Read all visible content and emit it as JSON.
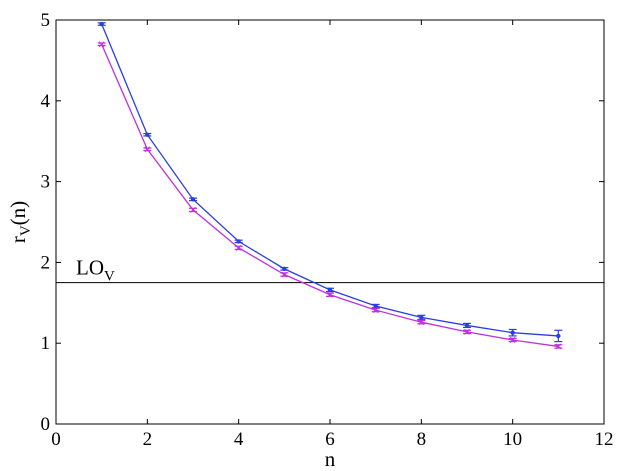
{
  "chart_data": {
    "type": "line",
    "title": "",
    "xlabel": "n",
    "ylabel": {
      "main": "r",
      "sub": "V",
      "suffix": "(n)"
    },
    "xlim": [
      0,
      12
    ],
    "ylim": [
      0,
      5
    ],
    "xticks": [
      "0",
      "2",
      "4",
      "6",
      "8",
      "10",
      "12"
    ],
    "yticks": [
      "0",
      "1",
      "2",
      "3",
      "4",
      "5"
    ],
    "grid": false,
    "legend": "none",
    "series": [
      {
        "color": "#2b3fe0",
        "marker": "dot",
        "x": [
          1,
          2,
          3,
          4,
          5,
          6,
          7,
          8,
          9,
          10,
          11
        ],
        "y": [
          4.95,
          3.58,
          2.78,
          2.26,
          1.92,
          1.66,
          1.46,
          1.32,
          1.22,
          1.13,
          1.09
        ],
        "err": [
          0.015,
          0.015,
          0.015,
          0.015,
          0.015,
          0.02,
          0.02,
          0.025,
          0.025,
          0.04,
          0.07
        ]
      },
      {
        "color": "#c030e0",
        "marker": "x",
        "x": [
          1,
          2,
          3,
          4,
          5,
          6,
          7,
          8,
          9,
          10,
          11
        ],
        "y": [
          4.7,
          3.4,
          2.65,
          2.18,
          1.85,
          1.6,
          1.41,
          1.26,
          1.14,
          1.04,
          0.96
        ],
        "err": [
          0.015,
          0.015,
          0.02,
          0.02,
          0.02,
          0.02,
          0.02,
          0.02,
          0.02,
          0.02,
          0.02
        ]
      }
    ],
    "reference_line": {
      "y": 1.75,
      "color": "#000000",
      "label": {
        "main": "LO",
        "sub": "V"
      }
    }
  }
}
